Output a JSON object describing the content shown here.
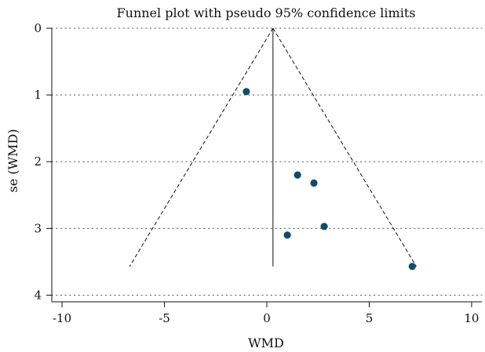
{
  "chart_data": {
    "type": "scatter",
    "title": "Funnel plot with pseudo 95% confidence limits",
    "xlabel": "WMD",
    "ylabel": "se (WMD)",
    "xlim": [
      -10.5,
      10.5
    ],
    "ylim": [
      0,
      4.1
    ],
    "y_reversed": true,
    "xticks": [
      -10,
      -5,
      0,
      5,
      10
    ],
    "yticks": [
      0,
      1,
      2,
      3,
      4
    ],
    "grid": "horizontal-dotted",
    "points": [
      {
        "x": -1.0,
        "y": 0.95
      },
      {
        "x": 1.5,
        "y": 2.2
      },
      {
        "x": 2.3,
        "y": 2.32
      },
      {
        "x": 2.8,
        "y": 2.97
      },
      {
        "x": 1.0,
        "y": 3.1
      },
      {
        "x": 7.1,
        "y": 3.57
      }
    ],
    "pooled_estimate": 0.3,
    "funnel_limits": {
      "apex": {
        "x": 0.3,
        "y": 0
      },
      "left_base": {
        "x": -6.7,
        "y": 3.57
      },
      "right_base": {
        "x": 7.3,
        "y": 3.57
      }
    },
    "point_color": "#0e4d6b"
  }
}
